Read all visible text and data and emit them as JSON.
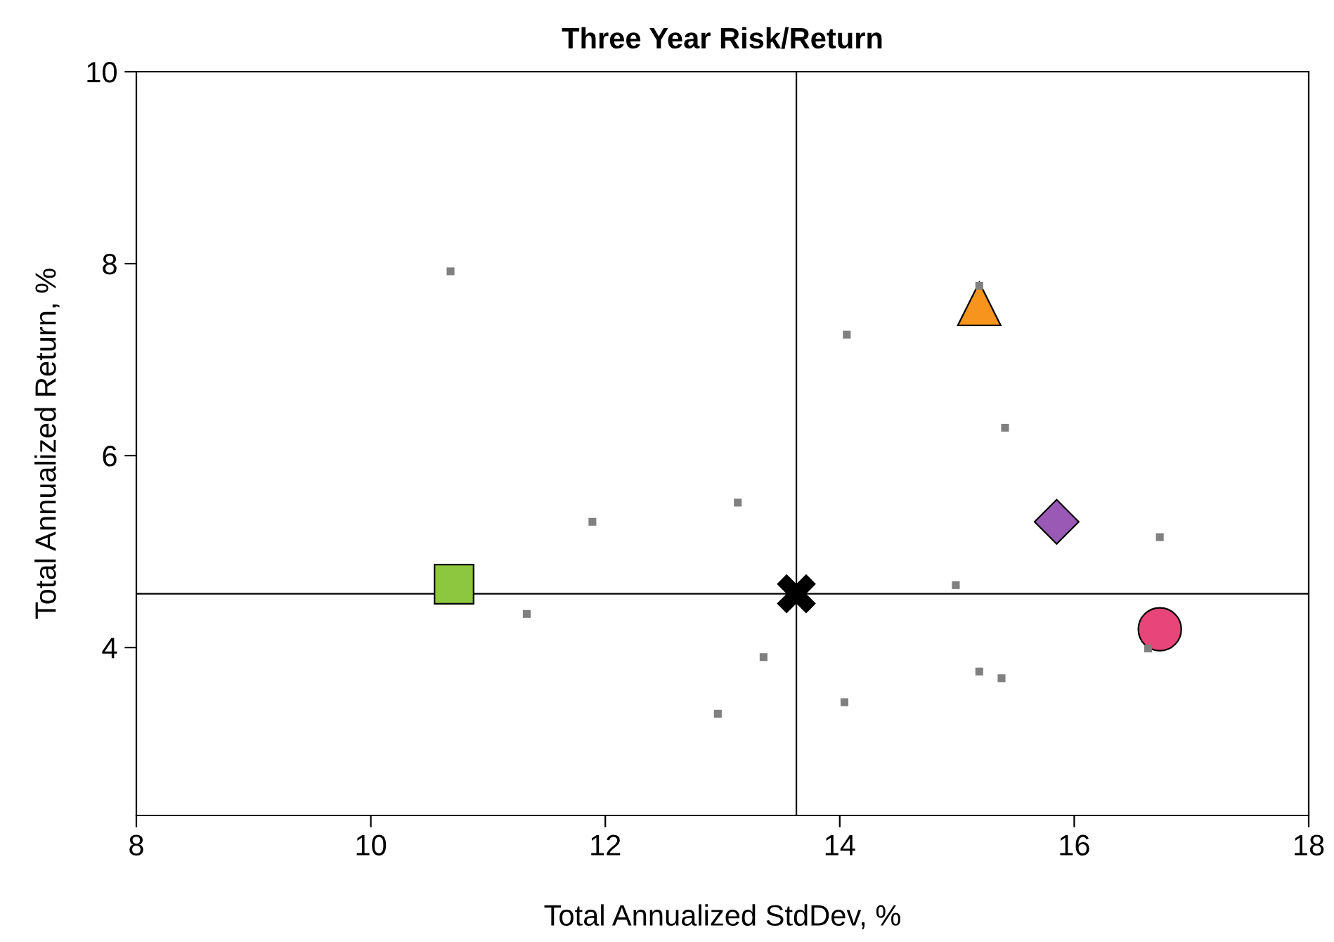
{
  "chart_data": {
    "type": "scatter",
    "title": "Three Year Risk/Return",
    "xlabel": "Total Annualized StdDev, %",
    "ylabel": "Total Annualized Return, %",
    "xlim": [
      8,
      18
    ],
    "ylim": [
      2.25,
      10
    ],
    "xticks": [
      8,
      10,
      12,
      14,
      16,
      18
    ],
    "yticks": [
      4,
      6,
      8,
      10
    ],
    "grid": false,
    "legend": false,
    "ref_lines": [
      {
        "axis": "x",
        "value": 13.63,
        "color": "#000000"
      },
      {
        "axis": "y",
        "value": 4.56,
        "color": "#000000"
      }
    ],
    "series": [
      {
        "color": "#808080",
        "marker": "square",
        "x": [
          10.68,
          14.06,
          15.41,
          13.13,
          11.89,
          16.73,
          14.99,
          11.33,
          13.35,
          15.19,
          15.38,
          14.04,
          12.96,
          16.63,
          15.19
        ],
        "values": [
          7.92,
          7.26,
          6.29,
          5.51,
          5.31,
          5.15,
          4.65,
          4.35,
          3.9,
          3.75,
          3.68,
          3.43,
          3.31,
          3.99,
          7.77
        ]
      },
      {
        "color": "#f7941d",
        "marker": "triangle",
        "x": [
          15.19
        ],
        "values": [
          7.58
        ]
      },
      {
        "color": "#9b59b6",
        "marker": "diamond",
        "x": [
          15.85
        ],
        "values": [
          5.31
        ]
      },
      {
        "color": "#e8457a",
        "marker": "circle",
        "x": [
          16.73
        ],
        "values": [
          4.19
        ]
      },
      {
        "color": "#8dc63f",
        "marker": "square",
        "x": [
          10.71
        ],
        "values": [
          4.66
        ]
      },
      {
        "color": "#000000",
        "marker": "cross",
        "x": [
          13.63
        ],
        "values": [
          4.56
        ]
      }
    ]
  }
}
